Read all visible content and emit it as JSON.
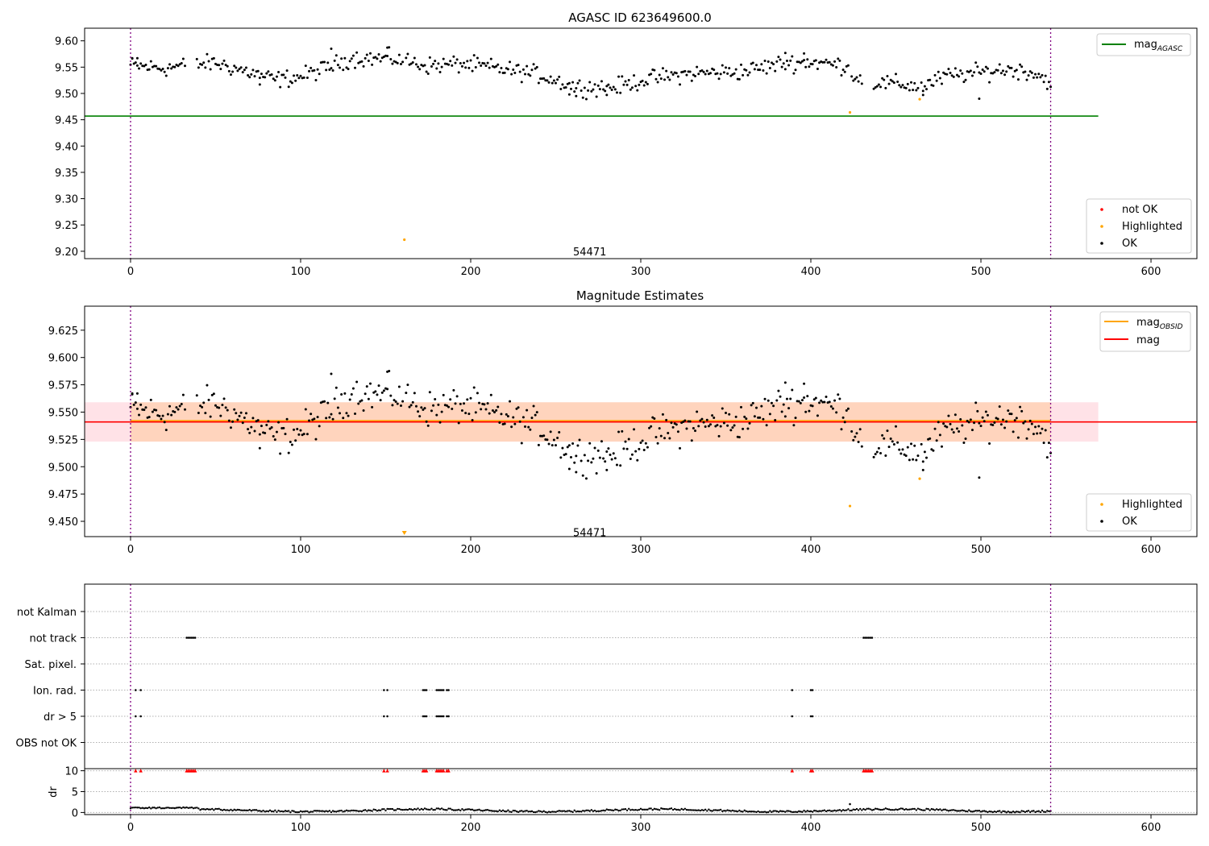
{
  "chart_data": [
    {
      "type": "scatter",
      "title": "AGASC ID 623649600.0",
      "xlim": [
        -27,
        627
      ],
      "ylim": [
        9.186,
        9.624
      ],
      "x_ticks": [
        0,
        100,
        200,
        300,
        400,
        500,
        600
      ],
      "y_ticks": [
        9.2,
        9.25,
        9.3,
        9.35,
        9.4,
        9.45,
        9.5,
        9.55,
        9.6
      ],
      "y_tick_labels": [
        "9.20",
        "9.25",
        "9.30",
        "9.35",
        "9.40",
        "9.45",
        "9.50",
        "9.55",
        "9.60"
      ],
      "vlines": [
        0,
        541
      ],
      "obsid_label": {
        "text": "54471",
        "x": 270,
        "y": 9.2
      },
      "mag_agasc": 9.457,
      "legend_lines": [
        {
          "name": "mag",
          "sub": "AGASC",
          "color": "#008000"
        }
      ],
      "legend_points": [
        {
          "name": "not OK",
          "color": "#ff0000"
        },
        {
          "name": "Highlighted",
          "color": "#ffa500"
        },
        {
          "name": "OK",
          "color": "#000000"
        }
      ],
      "highlighted_points": [
        [
          161,
          9.222
        ],
        [
          423,
          9.464
        ],
        [
          464,
          9.489
        ]
      ]
    },
    {
      "type": "scatter",
      "title": "Magnitude Estimates",
      "xlim": [
        -27,
        627
      ],
      "ylim": [
        9.436,
        9.647
      ],
      "x_ticks": [
        0,
        100,
        200,
        300,
        400,
        500,
        600
      ],
      "y_ticks": [
        9.45,
        9.475,
        9.5,
        9.525,
        9.55,
        9.575,
        9.6,
        9.625
      ],
      "y_tick_labels": [
        "9.450",
        "9.475",
        "9.500",
        "9.525",
        "9.550",
        "9.575",
        "9.600",
        "9.625"
      ],
      "vlines": [
        0,
        541
      ],
      "obsid_label": {
        "text": "54471",
        "x": 270,
        "y": 9.44
      },
      "mag": 9.541,
      "mag_obsid": 9.542,
      "band_mag": [
        9.523,
        9.559
      ],
      "band_obsid": [
        9.523,
        9.559
      ],
      "legend_lines": [
        {
          "name": "mag",
          "sub": "OBSID",
          "color": "#ffa500"
        },
        {
          "name": "mag",
          "sub": "",
          "color": "#ff0000"
        }
      ],
      "legend_points": [
        {
          "name": "Highlighted",
          "color": "#ffa500"
        },
        {
          "name": "OK",
          "color": "#000000"
        }
      ],
      "highlighted_points": [
        [
          423,
          9.464
        ],
        [
          464,
          9.489
        ]
      ],
      "below_range_marker": 161
    },
    {
      "type": "scatter",
      "title": "",
      "xlim": [
        -27,
        627
      ],
      "x_ticks": [
        0,
        100,
        200,
        300,
        400,
        500,
        600
      ],
      "vlines": [
        0,
        541
      ],
      "flag_labels": [
        "not Kalman",
        "not track",
        "Sat. pixel.",
        "Ion. rad.",
        "dr > 5",
        "OBS not OK"
      ],
      "flags": {
        "not track": [
          [
            33,
            38
          ],
          [
            431,
            436
          ]
        ],
        "Ion. rad.": [
          [
            3,
            3
          ],
          [
            6,
            6
          ],
          [
            149,
            149
          ],
          [
            151,
            151
          ],
          [
            172,
            174
          ],
          [
            180,
            184
          ],
          [
            186,
            187
          ],
          [
            389,
            389
          ],
          [
            400,
            401
          ]
        ],
        "dr > 5": [
          [
            3,
            3
          ],
          [
            6,
            6
          ],
          [
            149,
            149
          ],
          [
            151,
            151
          ],
          [
            172,
            174
          ],
          [
            180,
            184
          ],
          [
            186,
            187
          ],
          [
            389,
            389
          ],
          [
            400,
            401
          ]
        ]
      },
      "dr_ylabel": "dr",
      "dr_ylim": [
        -0.5,
        10.5
      ],
      "dr_ticks": [
        0,
        5,
        10
      ],
      "dr_tick_labels": [
        "0",
        "5",
        "10"
      ],
      "dr_clip_value": 10,
      "dr_outliers": [
        [
          423,
          2.0
        ]
      ]
    }
  ]
}
